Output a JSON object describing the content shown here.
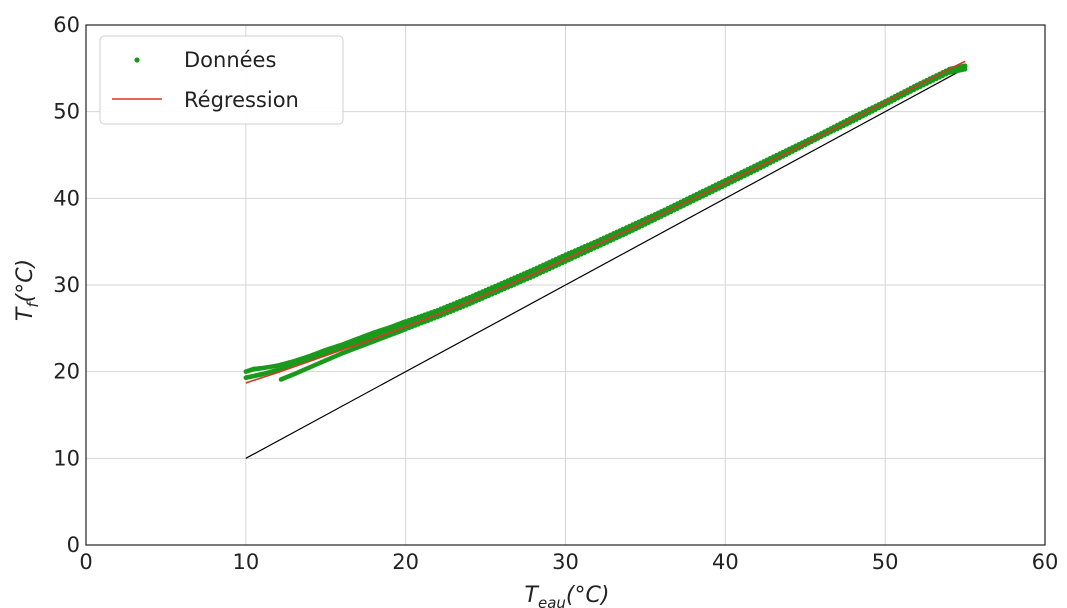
{
  "chart_data": {
    "type": "scatter",
    "title": "",
    "xlabel": {
      "base": "T",
      "sub": "eau",
      "unit": "(°C)"
    },
    "ylabel": {
      "base": "T",
      "sub": "f",
      "unit": "(°C)"
    },
    "xlim": [
      0,
      60
    ],
    "ylim": [
      0,
      60
    ],
    "xticks": [
      "0",
      "10",
      "20",
      "30",
      "40",
      "50",
      "60"
    ],
    "yticks": [
      "0",
      "10",
      "20",
      "30",
      "40",
      "50",
      "60"
    ],
    "grid": true,
    "legend": {
      "placement": "top-left",
      "entries": [
        "Données",
        "Régression"
      ]
    },
    "series": [
      {
        "name": "Données",
        "kind": "points",
        "color": "#1a9a1a",
        "branches": [
          {
            "x": [
              10.0,
              10.5,
              11.0,
              12.0,
              13.0,
              14.0,
              15.0,
              16.0,
              17.0,
              18.0,
              19.0,
              20.0,
              22.0,
              24.0,
              26.0,
              28.0,
              30.0,
              32.0,
              34.0,
              36.0,
              38.0,
              40.0,
              42.0,
              44.0,
              46.0,
              48.0,
              50.0,
              52.0,
              54.0,
              55.0
            ],
            "y": [
              20.0,
              20.3,
              20.4,
              20.7,
              21.2,
              21.8,
              22.5,
              23.1,
              23.8,
              24.5,
              25.1,
              25.8,
              27.1,
              28.6,
              30.2,
              31.8,
              33.5,
              35.1,
              36.8,
              38.5,
              40.3,
              42.1,
              43.9,
              45.7,
              47.5,
              49.4,
              51.2,
              53.1,
              54.9,
              55.3
            ]
          },
          {
            "x": [
              10.0,
              10.5,
              11.0,
              12.0,
              13.0,
              14.0,
              15.0,
              16.0,
              17.0,
              18.0,
              20.0,
              22.0,
              24.0,
              26.0,
              28.0,
              30.0,
              32.0,
              34.0,
              36.0,
              38.0,
              40.0,
              42.0,
              44.0,
              46.0,
              48.0,
              50.0,
              52.0,
              54.0,
              55.0
            ],
            "y": [
              19.3,
              19.5,
              19.7,
              20.2,
              20.9,
              21.5,
              22.1,
              22.8,
              23.4,
              24.1,
              25.5,
              26.9,
              28.4,
              30.0,
              31.6,
              33.3,
              35.0,
              36.7,
              38.4,
              40.2,
              42.0,
              43.8,
              45.6,
              47.4,
              49.3,
              51.1,
              53.0,
              54.8,
              55.2
            ]
          },
          {
            "x": [
              12.2,
              13.0,
              14.0,
              15.0,
              16.0,
              17.0,
              18.0,
              19.0,
              20.0,
              22.0,
              24.0,
              26.0,
              28.0,
              30.0,
              32.0,
              34.0,
              36.0,
              38.0,
              40.0,
              42.0,
              44.0,
              46.0,
              48.0,
              50.0,
              52.0,
              54.0,
              55.0
            ],
            "y": [
              19.1,
              19.7,
              20.5,
              21.3,
              22.1,
              22.8,
              23.5,
              24.2,
              24.9,
              26.3,
              27.8,
              29.4,
              31.0,
              32.7,
              34.4,
              36.1,
              37.9,
              39.7,
              41.5,
              43.3,
              45.2,
              47.1,
              48.9,
              50.8,
              52.7,
              54.5,
              54.9
            ]
          }
        ]
      },
      {
        "name": "Régression",
        "kind": "line",
        "color": "#d9362a",
        "x": [
          10,
          12,
          14,
          16,
          18,
          20,
          22,
          24,
          26,
          28,
          30,
          32,
          34,
          36,
          38,
          40,
          42,
          44,
          46,
          48,
          50,
          52,
          54,
          55
        ],
        "y": [
          18.7,
          19.9,
          21.2,
          22.5,
          23.8,
          25.2,
          26.6,
          28.1,
          29.7,
          31.3,
          33.0,
          34.7,
          36.4,
          38.2,
          40.0,
          41.8,
          43.6,
          45.4,
          47.3,
          49.2,
          51.1,
          53.0,
          54.9,
          55.8
        ]
      },
      {
        "name": "",
        "kind": "reference-line",
        "color": "#000000",
        "x": [
          10,
          55
        ],
        "y": [
          10,
          55
        ]
      }
    ]
  }
}
